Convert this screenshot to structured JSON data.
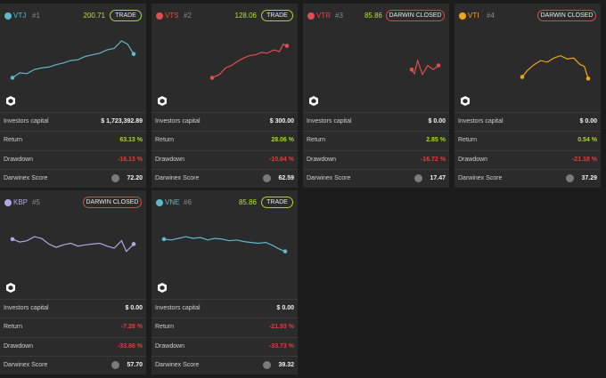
{
  "colors": {
    "green": "#a8d820",
    "red": "#e53d3d",
    "panel": "#2b2b2b",
    "bg": "#1c1c1c"
  },
  "labels": {
    "investors_capital": "Investors capital",
    "return": "Return",
    "drawdown": "Drawdown",
    "score": "Darwinex Score"
  },
  "cards": [
    {
      "ticker": "VTJ",
      "rank": "#1",
      "price": "200.71",
      "button": "TRADE",
      "dot": "#5fb8c8",
      "line": "#5fb8c8",
      "capital": "$ 1,723,392.89",
      "return": "63.13 %",
      "drawdown": "-16.13 %",
      "score": "72.20",
      "spark": [
        [
          0,
          0.1
        ],
        [
          0.06,
          0.22
        ],
        [
          0.12,
          0.2
        ],
        [
          0.18,
          0.3
        ],
        [
          0.24,
          0.34
        ],
        [
          0.3,
          0.36
        ],
        [
          0.36,
          0.42
        ],
        [
          0.42,
          0.46
        ],
        [
          0.48,
          0.52
        ],
        [
          0.54,
          0.54
        ],
        [
          0.6,
          0.62
        ],
        [
          0.66,
          0.66
        ],
        [
          0.72,
          0.7
        ],
        [
          0.78,
          0.78
        ],
        [
          0.84,
          0.82
        ],
        [
          0.9,
          1.0
        ],
        [
          0.95,
          0.92
        ],
        [
          1.0,
          0.68
        ]
      ]
    },
    {
      "ticker": "VTS",
      "rank": "#2",
      "price": "128.06",
      "button": "TRADE",
      "dot": "#e04d4d",
      "line": "#e04d4d",
      "capital": "$ 300.00",
      "return": "28.06 %",
      "drawdown": "-10.64 %",
      "score": "62.59",
      "spark": [
        [
          0,
          0.1
        ],
        [
          0.1,
          0.18
        ],
        [
          0.18,
          0.34
        ],
        [
          0.26,
          0.4
        ],
        [
          0.34,
          0.5
        ],
        [
          0.42,
          0.58
        ],
        [
          0.5,
          0.64
        ],
        [
          0.58,
          0.66
        ],
        [
          0.66,
          0.72
        ],
        [
          0.74,
          0.7
        ],
        [
          0.82,
          0.78
        ],
        [
          0.9,
          0.74
        ],
        [
          0.95,
          0.92
        ],
        [
          1.0,
          0.88
        ]
      ]
    },
    {
      "ticker": "VTR",
      "rank": "#3",
      "price": "85.86",
      "button": "DARWIN CLOSED",
      "dot": "#e04d4d",
      "line": "#e04d4d",
      "capital": "$ 0.00",
      "return": "2.85 %",
      "drawdown": "-16.72 %",
      "score": "17.47",
      "spark": [
        [
          0,
          0.3
        ],
        [
          0.1,
          0.2
        ],
        [
          0.22,
          0.52
        ],
        [
          0.4,
          0.18
        ],
        [
          0.6,
          0.4
        ],
        [
          0.8,
          0.3
        ],
        [
          1.0,
          0.4
        ]
      ]
    },
    {
      "ticker": "VTI",
      "rank": "#4",
      "price": "",
      "button": "DARWIN CLOSED",
      "dot": "#f0a418",
      "line": "#f0a418",
      "capital": "$ 0.00",
      "return": "0.54 %",
      "drawdown": "-21.18 %",
      "score": "37.29",
      "spark": [
        [
          0,
          0.12
        ],
        [
          0.08,
          0.28
        ],
        [
          0.18,
          0.42
        ],
        [
          0.28,
          0.52
        ],
        [
          0.38,
          0.48
        ],
        [
          0.48,
          0.58
        ],
        [
          0.58,
          0.64
        ],
        [
          0.68,
          0.56
        ],
        [
          0.78,
          0.58
        ],
        [
          0.88,
          0.42
        ],
        [
          0.94,
          0.38
        ],
        [
          1.0,
          0.08
        ]
      ]
    },
    {
      "ticker": "KBP",
      "rank": "#5",
      "price": "",
      "button": "DARWIN CLOSED",
      "dot": "#b0a8e0",
      "line": "#b0a8e0",
      "capital": "$ 0.00",
      "return": "-7.28 %",
      "drawdown": "-33.86 %",
      "score": "57.70",
      "spark": [
        [
          0,
          0.72
        ],
        [
          0.06,
          0.65
        ],
        [
          0.12,
          0.68
        ],
        [
          0.18,
          0.78
        ],
        [
          0.24,
          0.74
        ],
        [
          0.3,
          0.6
        ],
        [
          0.36,
          0.52
        ],
        [
          0.42,
          0.58
        ],
        [
          0.48,
          0.62
        ],
        [
          0.54,
          0.55
        ],
        [
          0.6,
          0.58
        ],
        [
          0.66,
          0.6
        ],
        [
          0.72,
          0.62
        ],
        [
          0.78,
          0.55
        ],
        [
          0.84,
          0.5
        ],
        [
          0.9,
          0.68
        ],
        [
          0.94,
          0.42
        ],
        [
          1.0,
          0.6
        ]
      ]
    },
    {
      "ticker": "VNE",
      "rank": "#6",
      "price": "85.86",
      "button": "TRADE",
      "dot": "#5fb8c8",
      "line": "#5fb8c8",
      "capital": "$ 0.00",
      "return": "-21.93 %",
      "drawdown": "-33.73 %",
      "score": "39.32",
      "spark": [
        [
          0,
          0.72
        ],
        [
          0.06,
          0.7
        ],
        [
          0.12,
          0.74
        ],
        [
          0.18,
          0.78
        ],
        [
          0.24,
          0.74
        ],
        [
          0.3,
          0.76
        ],
        [
          0.36,
          0.7
        ],
        [
          0.42,
          0.74
        ],
        [
          0.48,
          0.72
        ],
        [
          0.54,
          0.68
        ],
        [
          0.6,
          0.7
        ],
        [
          0.66,
          0.66
        ],
        [
          0.72,
          0.64
        ],
        [
          0.78,
          0.62
        ],
        [
          0.84,
          0.64
        ],
        [
          0.9,
          0.56
        ],
        [
          0.95,
          0.48
        ],
        [
          1.0,
          0.42
        ]
      ]
    }
  ]
}
